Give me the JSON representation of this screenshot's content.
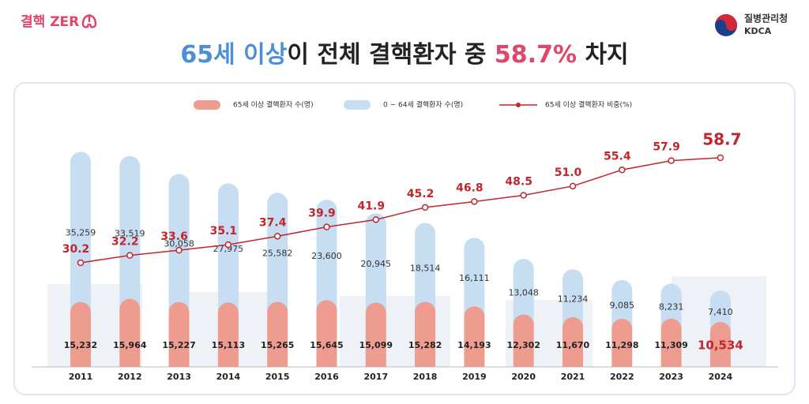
{
  "brand": {
    "left": "결핵 ZER",
    "right_ko": "질병관리청",
    "right_en": "KDCA"
  },
  "chart_data": {
    "type": "stacked-bar-line",
    "title_parts": [
      "65세 이상",
      "이 전체 결핵환자 중 ",
      "58.7%",
      " 차지"
    ],
    "categories": [
      "2011",
      "2012",
      "2013",
      "2014",
      "2015",
      "2016",
      "2017",
      "2018",
      "2019",
      "2020",
      "2021",
      "2022",
      "2023",
      "2024"
    ],
    "series": [
      {
        "name": "65세 이상 결핵환자 수(명)",
        "color": "#ee9c90",
        "type": "bar",
        "values": [
          15232,
          15964,
          15227,
          15113,
          15265,
          15645,
          15099,
          15282,
          14193,
          12302,
          11670,
          11298,
          11309,
          10534
        ],
        "value_labels": [
          "15,232",
          "15,964",
          "15,227",
          "15,113",
          "15,265",
          "15,645",
          "15,099",
          "15,282",
          "14,193",
          "12,302",
          "11,670",
          "11,298",
          "11,309",
          "10,534"
        ]
      },
      {
        "name": "0 ~ 64세 결핵환자 수(명)",
        "color": "#c7ddf2",
        "type": "bar",
        "values": [
          35259,
          33519,
          30058,
          27975,
          25582,
          23600,
          20945,
          18514,
          16111,
          13048,
          11234,
          9085,
          8231,
          7410
        ],
        "value_labels": [
          "35,259",
          "33,519",
          "30,058",
          "27,975",
          "25,582",
          "23,600",
          "20,945",
          "18,514",
          "16,111",
          "13,048",
          "11,234",
          "9,085",
          "8,231",
          "7,410"
        ]
      },
      {
        "name": "65세 이상 결핵환자 비중(%)",
        "color": "#c0262d",
        "type": "line",
        "values": [
          30.2,
          32.2,
          33.6,
          35.1,
          37.4,
          39.9,
          41.9,
          45.2,
          46.8,
          48.5,
          51.0,
          55.4,
          57.9,
          58.7
        ],
        "value_labels": [
          "30.2",
          "32.2",
          "33.6",
          "35.1",
          "37.4",
          "39.9",
          "41.9",
          "45.2",
          "46.8",
          "48.5",
          "51.0",
          "55.4",
          "57.9",
          "58.7"
        ]
      }
    ]
  }
}
